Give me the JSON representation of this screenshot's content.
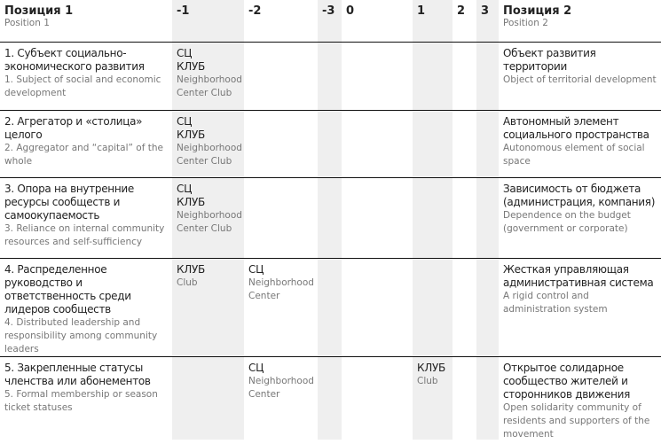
{
  "header": {
    "left_title": "Позиция 1",
    "left_sub": "Position 1",
    "right_title": "Позиция 2",
    "right_sub": "Position 2",
    "scale": [
      "-1",
      "-2",
      "-3",
      "0",
      "1",
      "2",
      "3"
    ]
  },
  "rows": [
    {
      "left_ru": "1. Субъект социально-экономического развития",
      "left_en": "1. Subject of social and economic development",
      "cells": [
        {
          "ru": "СЦ КЛУБ",
          "en": "Neighborhood Center Club"
        },
        null,
        null,
        null,
        null,
        null,
        null
      ],
      "right_ru": "Объект развития территории",
      "right_en": "Object of territorial development"
    },
    {
      "left_ru": "2. Агрегатор и «столица» целого",
      "left_en": "2. Aggregator and “capital” of the whole",
      "cells": [
        {
          "ru": "СЦ КЛУБ",
          "en": "Neighborhood Center Club"
        },
        null,
        null,
        null,
        null,
        null,
        null
      ],
      "right_ru": "Автономный элемент социального пространства",
      "right_en": "Autonomous element of social space"
    },
    {
      "left_ru": "3. Опора на внутренние ресурсы сообществ и самоокупаемость",
      "left_en": "3. Reliance on internal community resources and self-sufficiency",
      "cells": [
        {
          "ru": "СЦ КЛУБ",
          "en": "Neighborhood Center Club"
        },
        null,
        null,
        null,
        null,
        null,
        null
      ],
      "right_ru": "Зависимость от бюджета (администрация, компания)",
      "right_en": "Dependence on the budget (government or corporate)"
    },
    {
      "left_ru": "4. Распределенное руководство и ответственность среди лидеров сообществ",
      "left_en": "4. Distributed leadership and responsibility among community leaders",
      "cells": [
        {
          "ru": "КЛУБ",
          "en": "Club"
        },
        {
          "ru": "СЦ",
          "en": "Neighborhood Center"
        },
        null,
        null,
        null,
        null,
        null
      ],
      "right_ru": "Жесткая управляющая административная система",
      "right_en": "A rigid control and administration system"
    },
    {
      "left_ru": "5. Закрепленные статусы членства или абонементов",
      "left_en": "5. Formal membership or season ticket statuses",
      "cells": [
        null,
        {
          "ru": "СЦ",
          "en": "Neighborhood Center"
        },
        null,
        null,
        {
          "ru": "КЛУБ",
          "en": "Club"
        },
        null,
        null
      ],
      "right_ru": "Открытое солидарное сообщество жителей и сторонников движения",
      "right_en": "Open solidarity community of residents and supporters of the movement"
    }
  ]
}
